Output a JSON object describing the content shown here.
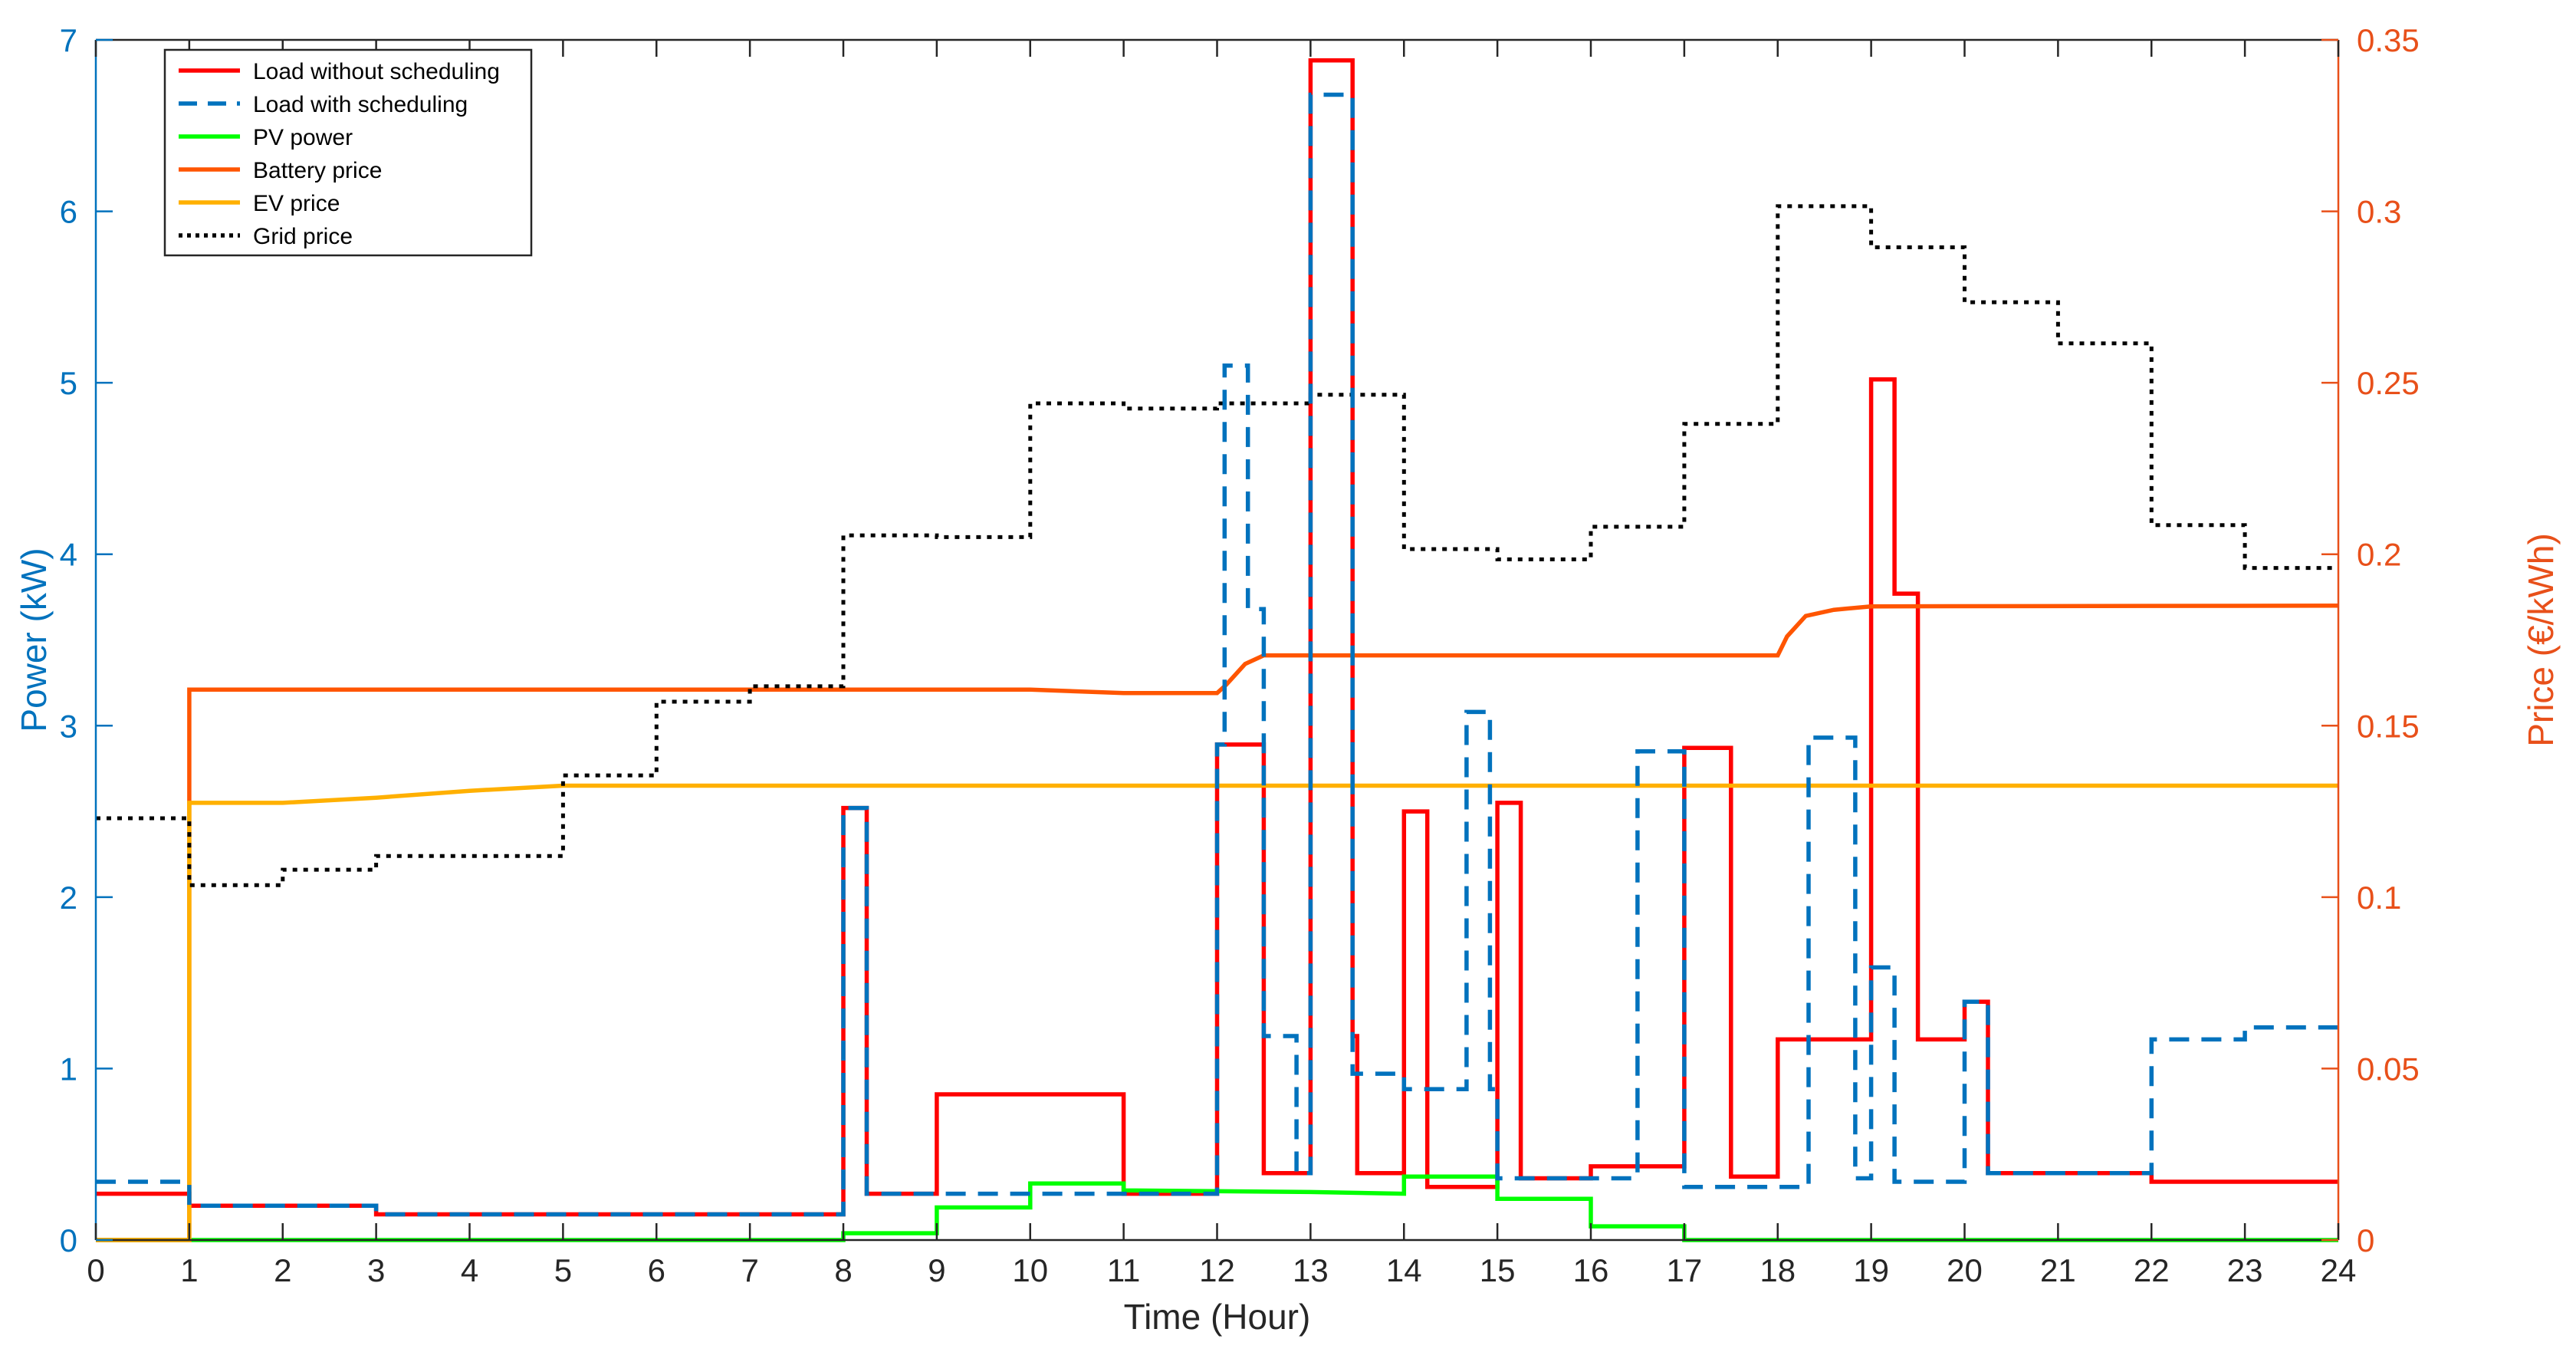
{
  "chart_data": {
    "type": "line",
    "title": "",
    "xlabel": "Time (Hour)",
    "ylabel_left": "Power (kW)",
    "ylabel_right": "Price (€/kWh)",
    "xlim": [
      0,
      24
    ],
    "ylim_left": [
      0,
      7
    ],
    "ylim_right": [
      0,
      0.35
    ],
    "x_ticks": [
      0,
      1,
      2,
      3,
      4,
      5,
      6,
      7,
      8,
      9,
      10,
      11,
      12,
      13,
      14,
      15,
      16,
      17,
      18,
      19,
      20,
      21,
      22,
      23,
      24
    ],
    "y_ticks_left": [
      0,
      1,
      2,
      3,
      4,
      5,
      6,
      7
    ],
    "y_ticks_right": [
      0,
      0.05,
      0.1,
      0.15,
      0.2,
      0.25,
      0.3,
      0.35
    ],
    "grid": false,
    "legend_placement": "top-left",
    "colors": {
      "left_axis": "#0072BD",
      "right_axis": "#E8501A",
      "load_without": "#FF0000",
      "load_with": "#0072BD",
      "pv": "#00FF00",
      "battery": "#FF5500",
      "ev": "#FFB000",
      "grid": "#000000"
    },
    "series": [
      {
        "name": "Load without scheduling",
        "axis": "left",
        "style": "solid",
        "color": "#FF0000",
        "points": [
          [
            0,
            0.27
          ],
          [
            1,
            0.27
          ],
          [
            1,
            0.2
          ],
          [
            3,
            0.2
          ],
          [
            3,
            0.15
          ],
          [
            8,
            0.15
          ],
          [
            8,
            2.52
          ],
          [
            8.25,
            2.52
          ],
          [
            8.25,
            0.27
          ],
          [
            9,
            0.27
          ],
          [
            9,
            0.85
          ],
          [
            11,
            0.85
          ],
          [
            11,
            0.27
          ],
          [
            12,
            0.27
          ],
          [
            12,
            2.89
          ],
          [
            12.5,
            2.89
          ],
          [
            12.5,
            0.39
          ],
          [
            13,
            0.39
          ],
          [
            13,
            6.88
          ],
          [
            13.45,
            6.88
          ],
          [
            13.45,
            1.19
          ],
          [
            13.5,
            1.19
          ],
          [
            13.5,
            0.39
          ],
          [
            14,
            0.39
          ],
          [
            14,
            2.5
          ],
          [
            14.25,
            2.5
          ],
          [
            14.25,
            0.31
          ],
          [
            15,
            0.31
          ],
          [
            15,
            2.55
          ],
          [
            15.25,
            2.55
          ],
          [
            15.25,
            0.36
          ],
          [
            16,
            0.36
          ],
          [
            16,
            0.43
          ],
          [
            17,
            0.43
          ],
          [
            17,
            2.87
          ],
          [
            17.5,
            2.87
          ],
          [
            17.5,
            0.37
          ],
          [
            18,
            0.37
          ],
          [
            18,
            1.17
          ],
          [
            19,
            1.17
          ],
          [
            19,
            5.02
          ],
          [
            19.25,
            5.02
          ],
          [
            19.25,
            3.77
          ],
          [
            19.5,
            3.77
          ],
          [
            19.5,
            1.17
          ],
          [
            20,
            1.17
          ],
          [
            20,
            1.39
          ],
          [
            20.25,
            1.39
          ],
          [
            20.25,
            0.39
          ],
          [
            22,
            0.39
          ],
          [
            22,
            0.34
          ],
          [
            24,
            0.34
          ]
        ]
      },
      {
        "name": "Load with scheduling",
        "axis": "left",
        "style": "dashed",
        "color": "#0072BD",
        "points": [
          [
            0,
            0.34
          ],
          [
            1,
            0.34
          ],
          [
            1,
            0.2
          ],
          [
            3,
            0.2
          ],
          [
            3,
            0.15
          ],
          [
            8,
            0.15
          ],
          [
            8,
            2.52
          ],
          [
            8.25,
            2.52
          ],
          [
            8.25,
            0.27
          ],
          [
            9,
            0.27
          ],
          [
            9,
            0.27
          ],
          [
            11,
            0.27
          ],
          [
            11,
            0.27
          ],
          [
            12,
            0.27
          ],
          [
            12,
            2.89
          ],
          [
            12.08,
            2.89
          ],
          [
            12.08,
            5.1
          ],
          [
            12.33,
            5.1
          ],
          [
            12.33,
            3.68
          ],
          [
            12.5,
            3.68
          ],
          [
            12.5,
            1.19
          ],
          [
            12.85,
            1.19
          ],
          [
            12.85,
            0.39
          ],
          [
            13,
            0.39
          ],
          [
            13,
            6.68
          ],
          [
            13.45,
            6.68
          ],
          [
            13.45,
            0.97
          ],
          [
            14,
            0.97
          ],
          [
            14,
            0.88
          ],
          [
            14.67,
            0.88
          ],
          [
            14.67,
            3.08
          ],
          [
            14.92,
            3.08
          ],
          [
            14.92,
            0.88
          ],
          [
            15,
            0.88
          ],
          [
            15,
            0.36
          ],
          [
            16.5,
            0.36
          ],
          [
            16.5,
            2.85
          ],
          [
            17,
            2.85
          ],
          [
            17,
            0.31
          ],
          [
            18.33,
            0.31
          ],
          [
            18.33,
            2.93
          ],
          [
            18.83,
            2.93
          ],
          [
            18.83,
            0.36
          ],
          [
            19,
            0.36
          ],
          [
            19,
            1.59
          ],
          [
            19.25,
            1.59
          ],
          [
            19.25,
            0.34
          ],
          [
            20,
            0.34
          ],
          [
            20,
            1.39
          ],
          [
            20.25,
            1.39
          ],
          [
            20.25,
            0.39
          ],
          [
            22,
            0.39
          ],
          [
            22,
            1.17
          ],
          [
            23,
            1.17
          ],
          [
            23,
            1.24
          ],
          [
            24,
            1.24
          ]
        ]
      },
      {
        "name": "PV power",
        "axis": "left",
        "style": "solid",
        "color": "#00FF00",
        "points": [
          [
            0,
            0
          ],
          [
            8,
            0
          ],
          [
            8,
            0.04
          ],
          [
            9,
            0.04
          ],
          [
            9,
            0.19
          ],
          [
            10,
            0.19
          ],
          [
            10,
            0.33
          ],
          [
            11,
            0.33
          ],
          [
            11,
            0.29
          ],
          [
            13,
            0.28
          ],
          [
            14,
            0.27
          ],
          [
            14,
            0.37
          ],
          [
            15,
            0.37
          ],
          [
            15,
            0.24
          ],
          [
            16,
            0.24
          ],
          [
            16,
            0.08
          ],
          [
            17,
            0.08
          ],
          [
            17,
            0
          ],
          [
            24,
            0
          ]
        ]
      },
      {
        "name": "Battery price",
        "axis": "right",
        "style": "solid",
        "color": "#FF5500",
        "points": [
          [
            0,
            0
          ],
          [
            1,
            0
          ],
          [
            1,
            0.1605
          ],
          [
            10,
            0.1605
          ],
          [
            11,
            0.1595
          ],
          [
            12,
            0.1595
          ],
          [
            12.1,
            0.162
          ],
          [
            12.3,
            0.168
          ],
          [
            12.5,
            0.1705
          ],
          [
            18,
            0.1705
          ],
          [
            18.1,
            0.176
          ],
          [
            18.3,
            0.182
          ],
          [
            18.6,
            0.1838
          ],
          [
            19,
            0.1848
          ],
          [
            24,
            0.185
          ]
        ]
      },
      {
        "name": "EV price",
        "axis": "right",
        "style": "solid",
        "color": "#FFB000",
        "points": [
          [
            0,
            0
          ],
          [
            1,
            0
          ],
          [
            1,
            0.1275
          ],
          [
            2,
            0.1275
          ],
          [
            3,
            0.129
          ],
          [
            4,
            0.131
          ],
          [
            5,
            0.1325
          ],
          [
            24,
            0.1325
          ]
        ]
      },
      {
        "name": "Grid price",
        "axis": "right",
        "style": "dotted",
        "color": "#000000",
        "points": [
          [
            0,
            0.123
          ],
          [
            1,
            0.123
          ],
          [
            1,
            0.1035
          ],
          [
            2,
            0.1035
          ],
          [
            2,
            0.108
          ],
          [
            3,
            0.108
          ],
          [
            3,
            0.112
          ],
          [
            5,
            0.112
          ],
          [
            5,
            0.1355
          ],
          [
            6,
            0.1355
          ],
          [
            6,
            0.157
          ],
          [
            7,
            0.157
          ],
          [
            7,
            0.1615
          ],
          [
            8,
            0.1615
          ],
          [
            8,
            0.2055
          ],
          [
            9,
            0.2055
          ],
          [
            9,
            0.205
          ],
          [
            10,
            0.205
          ],
          [
            10,
            0.244
          ],
          [
            11,
            0.244
          ],
          [
            11,
            0.2425
          ],
          [
            12,
            0.2425
          ],
          [
            12,
            0.244
          ],
          [
            13,
            0.244
          ],
          [
            13,
            0.2465
          ],
          [
            14,
            0.2465
          ],
          [
            14,
            0.2015
          ],
          [
            15,
            0.2015
          ],
          [
            15,
            0.1985
          ],
          [
            16,
            0.1985
          ],
          [
            16,
            0.208
          ],
          [
            17,
            0.208
          ],
          [
            17,
            0.238
          ],
          [
            18,
            0.238
          ],
          [
            18,
            0.3015
          ],
          [
            19,
            0.3015
          ],
          [
            19,
            0.2895
          ],
          [
            20,
            0.2895
          ],
          [
            20,
            0.2735
          ],
          [
            21,
            0.2735
          ],
          [
            21,
            0.2615
          ],
          [
            22,
            0.2615
          ],
          [
            22,
            0.2085
          ],
          [
            23,
            0.2085
          ],
          [
            23,
            0.196
          ],
          [
            24,
            0.196
          ]
        ]
      }
    ]
  }
}
